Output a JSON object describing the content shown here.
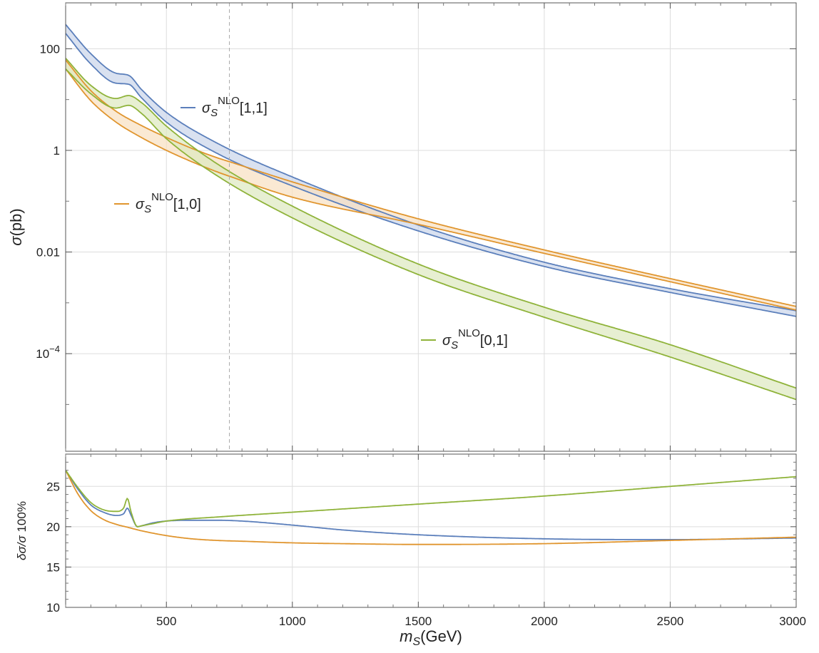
{
  "chart_data": [
    {
      "type": "line",
      "panel": "main",
      "xlabel": {
        "base": "m",
        "sub": "S",
        "rest": "(GeV)"
      },
      "ylabel": "σ(pb)",
      "yscale": "log",
      "xlim": [
        100,
        3000
      ],
      "ylim": [
        1.2e-06,
        800
      ],
      "grid": true,
      "reference_line": {
        "x": 750,
        "style": "dashed"
      },
      "x_ticks": [
        "500",
        "1000",
        "1500",
        "2000",
        "2500",
        "3000"
      ],
      "y_ticks": [
        {
          "value": 100,
          "label": "100"
        },
        {
          "value": 1,
          "label": "1"
        },
        {
          "value": 0.01,
          "label": "0.01"
        },
        {
          "value": 0.0001,
          "label": "10",
          "sup": "−4"
        }
      ],
      "series": [
        {
          "name": "σS NLO [1,1]",
          "label": {
            "main": "σ",
            "sub": "S",
            "sup": "NLO",
            "rest": "[1,1]"
          },
          "color": "#5b7fbb",
          "fill": "#c9d4ea",
          "x": [
            100,
            200,
            300,
            350,
            400,
            500,
            700,
            1000,
            1500,
            2000,
            2500,
            3000
          ],
          "upper": [
            300,
            80,
            33,
            30,
            16,
            5.6,
            1.4,
            0.3,
            0.034,
            0.0063,
            0.0019,
            0.0007
          ],
          "lower": [
            200,
            50,
            21,
            20,
            11,
            3.6,
            0.88,
            0.2,
            0.026,
            0.0052,
            0.0016,
            0.00054
          ]
        },
        {
          "name": "σS NLO [1,0]",
          "label": {
            "main": "σ",
            "sub": "S",
            "sup": "NLO",
            "rest": "[1,0]"
          },
          "color": "#e0952e",
          "fill": "#f8dfc0",
          "x": [
            100,
            200,
            300,
            400,
            500,
            600,
            700,
            750,
            1000,
            1500,
            2000,
            2500,
            3000
          ],
          "upper": [
            60,
            15,
            5.9,
            3.1,
            1.8,
            1.1,
            0.72,
            0.6,
            0.24,
            0.045,
            0.011,
            0.003,
            0.00085
          ],
          "lower": [
            40,
            9.5,
            3.6,
            1.8,
            1.0,
            0.6,
            0.38,
            0.31,
            0.12,
            0.035,
            0.0094,
            0.0026,
            0.00072
          ]
        },
        {
          "name": "σS NLO [0,1]",
          "label": {
            "main": "σ",
            "sub": "S",
            "sup": "NLO",
            "rest": "[0,1]"
          },
          "color": "#8fb33a",
          "fill": "#dde8bf",
          "x": [
            100,
            200,
            300,
            350,
            400,
            500,
            700,
            1000,
            1500,
            2000,
            2500,
            3000
          ],
          "upper": [
            65,
            19,
            10.5,
            12,
            8.8,
            3,
            0.55,
            0.08,
            0.0058,
            0.00082,
            0.00015,
            2.1e-05
          ],
          "lower": [
            40,
            13,
            6.8,
            7.7,
            5.4,
            1.7,
            0.32,
            0.047,
            0.0036,
            0.00052,
            8.58e-05,
            1.25e-05
          ]
        }
      ]
    },
    {
      "type": "line",
      "panel": "ratio",
      "ylabel": "δσ/σ 100%",
      "xlim": [
        100,
        3000
      ],
      "ylim": [
        10,
        29
      ],
      "grid": true,
      "x_ticks": [
        "500",
        "1000",
        "1500",
        "2000",
        "2500",
        "3000"
      ],
      "y_ticks": [
        "10",
        "15",
        "20",
        "25"
      ],
      "series": [
        {
          "name": "[1,1]",
          "color": "#5b7fbb",
          "x": [
            100,
            150,
            200,
            250,
            300,
            330,
            345,
            360,
            385,
            400,
            450,
            500,
            600,
            700,
            800,
            1000,
            1200,
            1500,
            2000,
            2500,
            3000
          ],
          "y": [
            27,
            24.6,
            22.7,
            21.8,
            21.4,
            21.6,
            22.3,
            21.4,
            20.0,
            20.1,
            20.5,
            20.7,
            20.8,
            20.8,
            20.7,
            20.2,
            19.6,
            19.0,
            18.5,
            18.4,
            18.6
          ]
        },
        {
          "name": "[1,0]",
          "color": "#e0952e",
          "x": [
            100,
            150,
            200,
            250,
            300,
            350,
            400,
            500,
            600,
            700,
            800,
            1000,
            1200,
            1500,
            2000,
            2500,
            3000
          ],
          "y": [
            27,
            24.0,
            22.0,
            20.9,
            20.3,
            19.9,
            19.5,
            18.9,
            18.5,
            18.3,
            18.2,
            18.0,
            17.9,
            17.8,
            17.9,
            18.3,
            18.7
          ]
        },
        {
          "name": "[0,1]",
          "color": "#8fb33a",
          "x": [
            100,
            150,
            200,
            250,
            300,
            330,
            345,
            360,
            385,
            400,
            450,
            500,
            700,
            1000,
            1500,
            2000,
            2500,
            3000
          ],
          "y": [
            27,
            24.8,
            23.0,
            22.1,
            21.9,
            22.3,
            23.5,
            21.8,
            20.0,
            20.1,
            20.4,
            20.7,
            21.2,
            21.8,
            22.8,
            23.8,
            25.0,
            26.2
          ]
        }
      ]
    }
  ]
}
